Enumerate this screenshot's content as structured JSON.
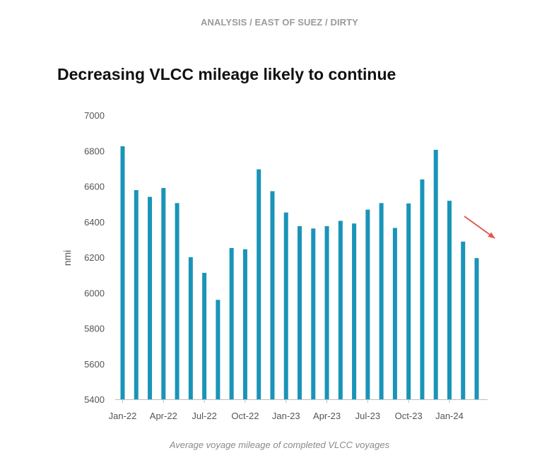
{
  "header": {
    "breadcrumb": "ANALYSIS / EAST OF SUEZ / DIRTY"
  },
  "caption": "Average voyage mileage of completed VLCC voyages",
  "colors": {
    "bar": "#1a94b8",
    "arrow": "#e05a4e",
    "axis": "#bdbdbd"
  },
  "chart_data": {
    "type": "bar",
    "title": "Decreasing VLCC mileage likely to continue",
    "xlabel": "",
    "ylabel": "nmi",
    "ylim": [
      5400,
      7000
    ],
    "yticks": [
      5400,
      5600,
      5800,
      6000,
      6200,
      6400,
      6600,
      6800,
      7000
    ],
    "categories": [
      "Jan-22",
      "Feb-22",
      "Mar-22",
      "Apr-22",
      "May-22",
      "Jun-22",
      "Jul-22",
      "Aug-22",
      "Sep-22",
      "Oct-22",
      "Nov-22",
      "Dec-22",
      "Jan-23",
      "Feb-23",
      "Mar-23",
      "Apr-23",
      "May-23",
      "Jun-23",
      "Jul-23",
      "Aug-23",
      "Sep-23",
      "Oct-23",
      "Nov-23",
      "Dec-23",
      "Jan-24",
      "Feb-24",
      "Mar-24"
    ],
    "xtick_labels": [
      "Jan-22",
      "Apr-22",
      "Jul-22",
      "Oct-22",
      "Jan-23",
      "Apr-23",
      "Jul-23",
      "Oct-23",
      "Jan-24"
    ],
    "values": [
      6825,
      6578,
      6540,
      6590,
      6505,
      6200,
      6112,
      5960,
      6252,
      6245,
      6695,
      6572,
      6452,
      6375,
      6362,
      6375,
      6405,
      6390,
      6468,
      6505,
      6365,
      6503,
      6638,
      6805,
      6518,
      6288,
      6195
    ],
    "annotations": [
      {
        "type": "arrow",
        "description": "downward trend arrow",
        "direction": "down-right"
      }
    ]
  }
}
